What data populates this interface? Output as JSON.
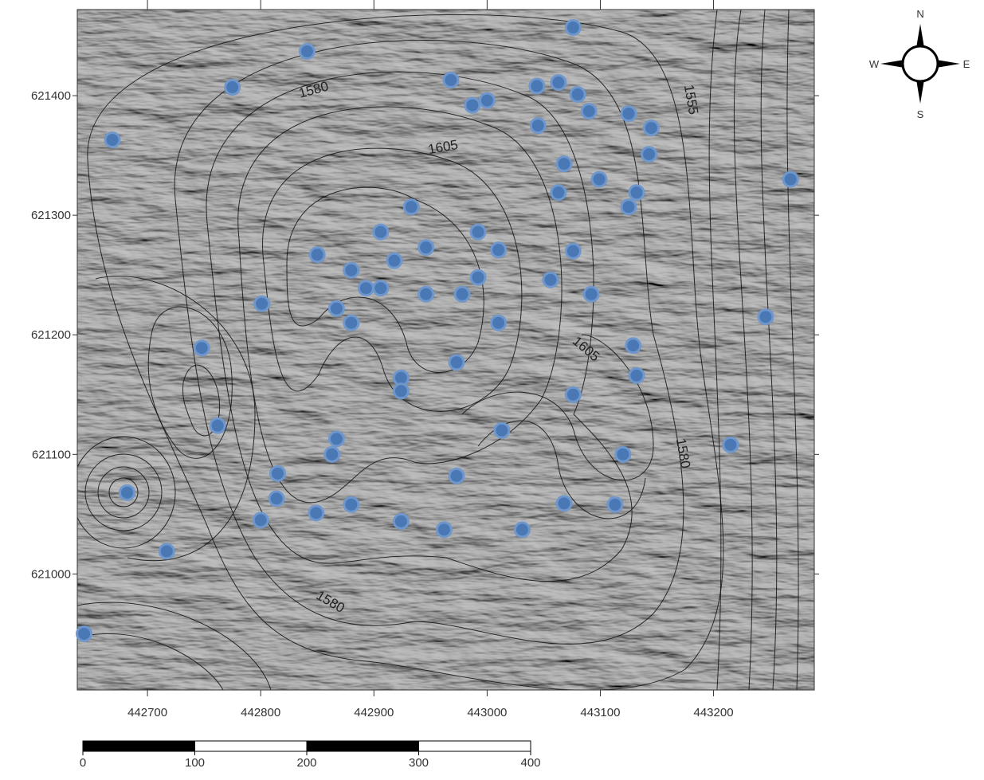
{
  "chart_data": {
    "type": "scatter",
    "x": [
      443076,
      442841,
      442775,
      442968,
      443044,
      443063,
      443080,
      443000,
      442987,
      443090,
      443125,
      443145,
      443045,
      442669,
      443143,
      443068,
      443099,
      443268,
      443063,
      443132,
      443125,
      442933,
      442906,
      442992,
      442946,
      443010,
      442850,
      443076,
      442918,
      442880,
      442992,
      443056,
      442893,
      442906,
      442946,
      442978,
      443092,
      442801,
      442867,
      442880,
      443010,
      443246,
      442748,
      443129,
      442973,
      443132,
      442924,
      442924,
      443076,
      442762,
      443013,
      442867,
      442863,
      443120,
      443215,
      442815,
      442973,
      442682,
      442814,
      442880,
      443068,
      443113,
      442800,
      442849,
      442924,
      442962,
      443031,
      442717,
      442644
    ],
    "series": [
      {
        "color": "#4a78b5",
        "values": [
          621457,
          621437,
          621407,
          621413,
          621408,
          621411,
          621401,
          621396,
          621392,
          621387,
          621385,
          621373,
          621375,
          621363,
          621351,
          621343,
          621330,
          621330,
          621319,
          621319,
          621307,
          621307,
          621286,
          621286,
          621273,
          621271,
          621267,
          621270,
          621262,
          621254,
          621248,
          621246,
          621239,
          621239,
          621234,
          621234,
          621234,
          621226,
          621222,
          621210,
          621210,
          621215,
          621189,
          621191,
          621177,
          621166,
          621164,
          621153,
          621150,
          621124,
          621120,
          621113,
          621100,
          621100,
          621108,
          621084,
          621082,
          621068,
          621063,
          621058,
          621059,
          621058,
          621045,
          621051,
          621044,
          621037,
          621037,
          621019,
          620950
        ]
      }
    ],
    "xlim": [
      442638,
      443289
    ],
    "ylim": [
      620903,
      621472
    ],
    "xticks": [
      442700,
      442800,
      442900,
      443000,
      443100,
      443200
    ],
    "yticks": [
      621000,
      621100,
      621200,
      621300,
      621400
    ],
    "annotations": [
      "1580",
      "1605",
      "1555",
      "1605",
      "1580",
      "1580"
    ]
  },
  "scale_bar": {
    "ticks": [
      0,
      100,
      200,
      300,
      400
    ]
  },
  "compass": {
    "north": "N",
    "east": "E",
    "south": "S",
    "west": "W"
  }
}
